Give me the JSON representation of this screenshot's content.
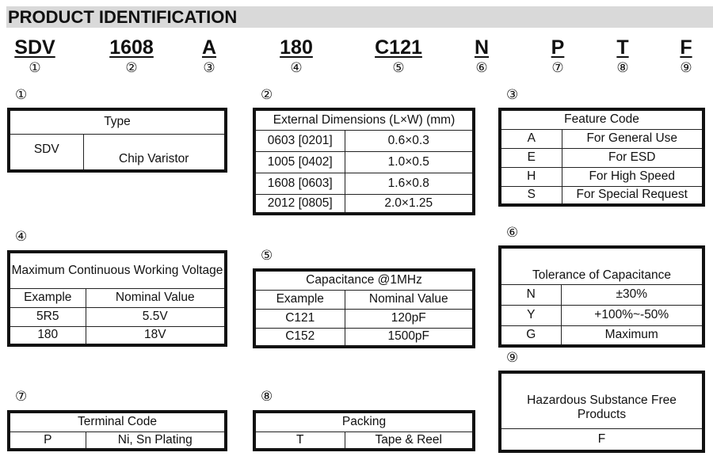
{
  "title": "PRODUCT IDENTIFICATION",
  "codes": [
    {
      "code": "SDV",
      "num": "①"
    },
    {
      "code": "1608",
      "num": "②"
    },
    {
      "code": "A",
      "num": "③"
    },
    {
      "code": "180",
      "num": "④"
    },
    {
      "code": "C121",
      "num": "⑤"
    },
    {
      "code": "N",
      "num": "⑥"
    },
    {
      "code": "P",
      "num": "⑦"
    },
    {
      "code": "T",
      "num": "⑧"
    },
    {
      "code": "F",
      "num": "⑨"
    }
  ],
  "tables": [
    {
      "label": "①",
      "header": "Type",
      "rows": [
        [
          "SDV",
          "Chip Varistor"
        ]
      ]
    },
    {
      "label": "②",
      "header": "External Dimensions (L×W) (mm)",
      "rows": [
        [
          "0603 [0201]",
          "0.6×0.3"
        ],
        [
          "1005 [0402]",
          "1.0×0.5"
        ],
        [
          "1608 [0603]",
          "1.6×0.8"
        ],
        [
          "2012 [0805]",
          "2.0×1.25"
        ]
      ]
    },
    {
      "label": "③",
      "header": "Feature Code",
      "rows": [
        [
          "A",
          "For General Use"
        ],
        [
          "E",
          "For ESD"
        ],
        [
          "H",
          "For High Speed"
        ],
        [
          "S",
          "For Special Request"
        ]
      ]
    },
    {
      "label": "④",
      "header": "Maximum Continuous Working Voltage",
      "rows": [
        [
          "Example",
          "Nominal Value"
        ],
        [
          "5R5",
          "5.5V"
        ],
        [
          "180",
          "18V"
        ]
      ]
    },
    {
      "label": "⑤",
      "header": "Capacitance @1MHz",
      "rows": [
        [
          "Example",
          "Nominal Value"
        ],
        [
          "C121",
          "120pF"
        ],
        [
          "C152",
          "1500pF"
        ]
      ]
    },
    {
      "label": "⑥",
      "header": "Tolerance of Capacitance",
      "rows": [
        [
          "N",
          "±30%"
        ],
        [
          "Y",
          "+100%~-50%"
        ],
        [
          "G",
          "Maximum"
        ]
      ]
    },
    {
      "label": "⑦",
      "header": "Terminal Code",
      "rows": [
        [
          "P",
          "Ni, Sn Plating"
        ]
      ]
    },
    {
      "label": "⑧",
      "header": "Packing",
      "rows": [
        [
          "T",
          "Tape & Reel"
        ]
      ]
    },
    {
      "label": "⑨",
      "header": "Hazardous Substance Free Products",
      "rows": [
        [
          "F"
        ]
      ]
    }
  ]
}
